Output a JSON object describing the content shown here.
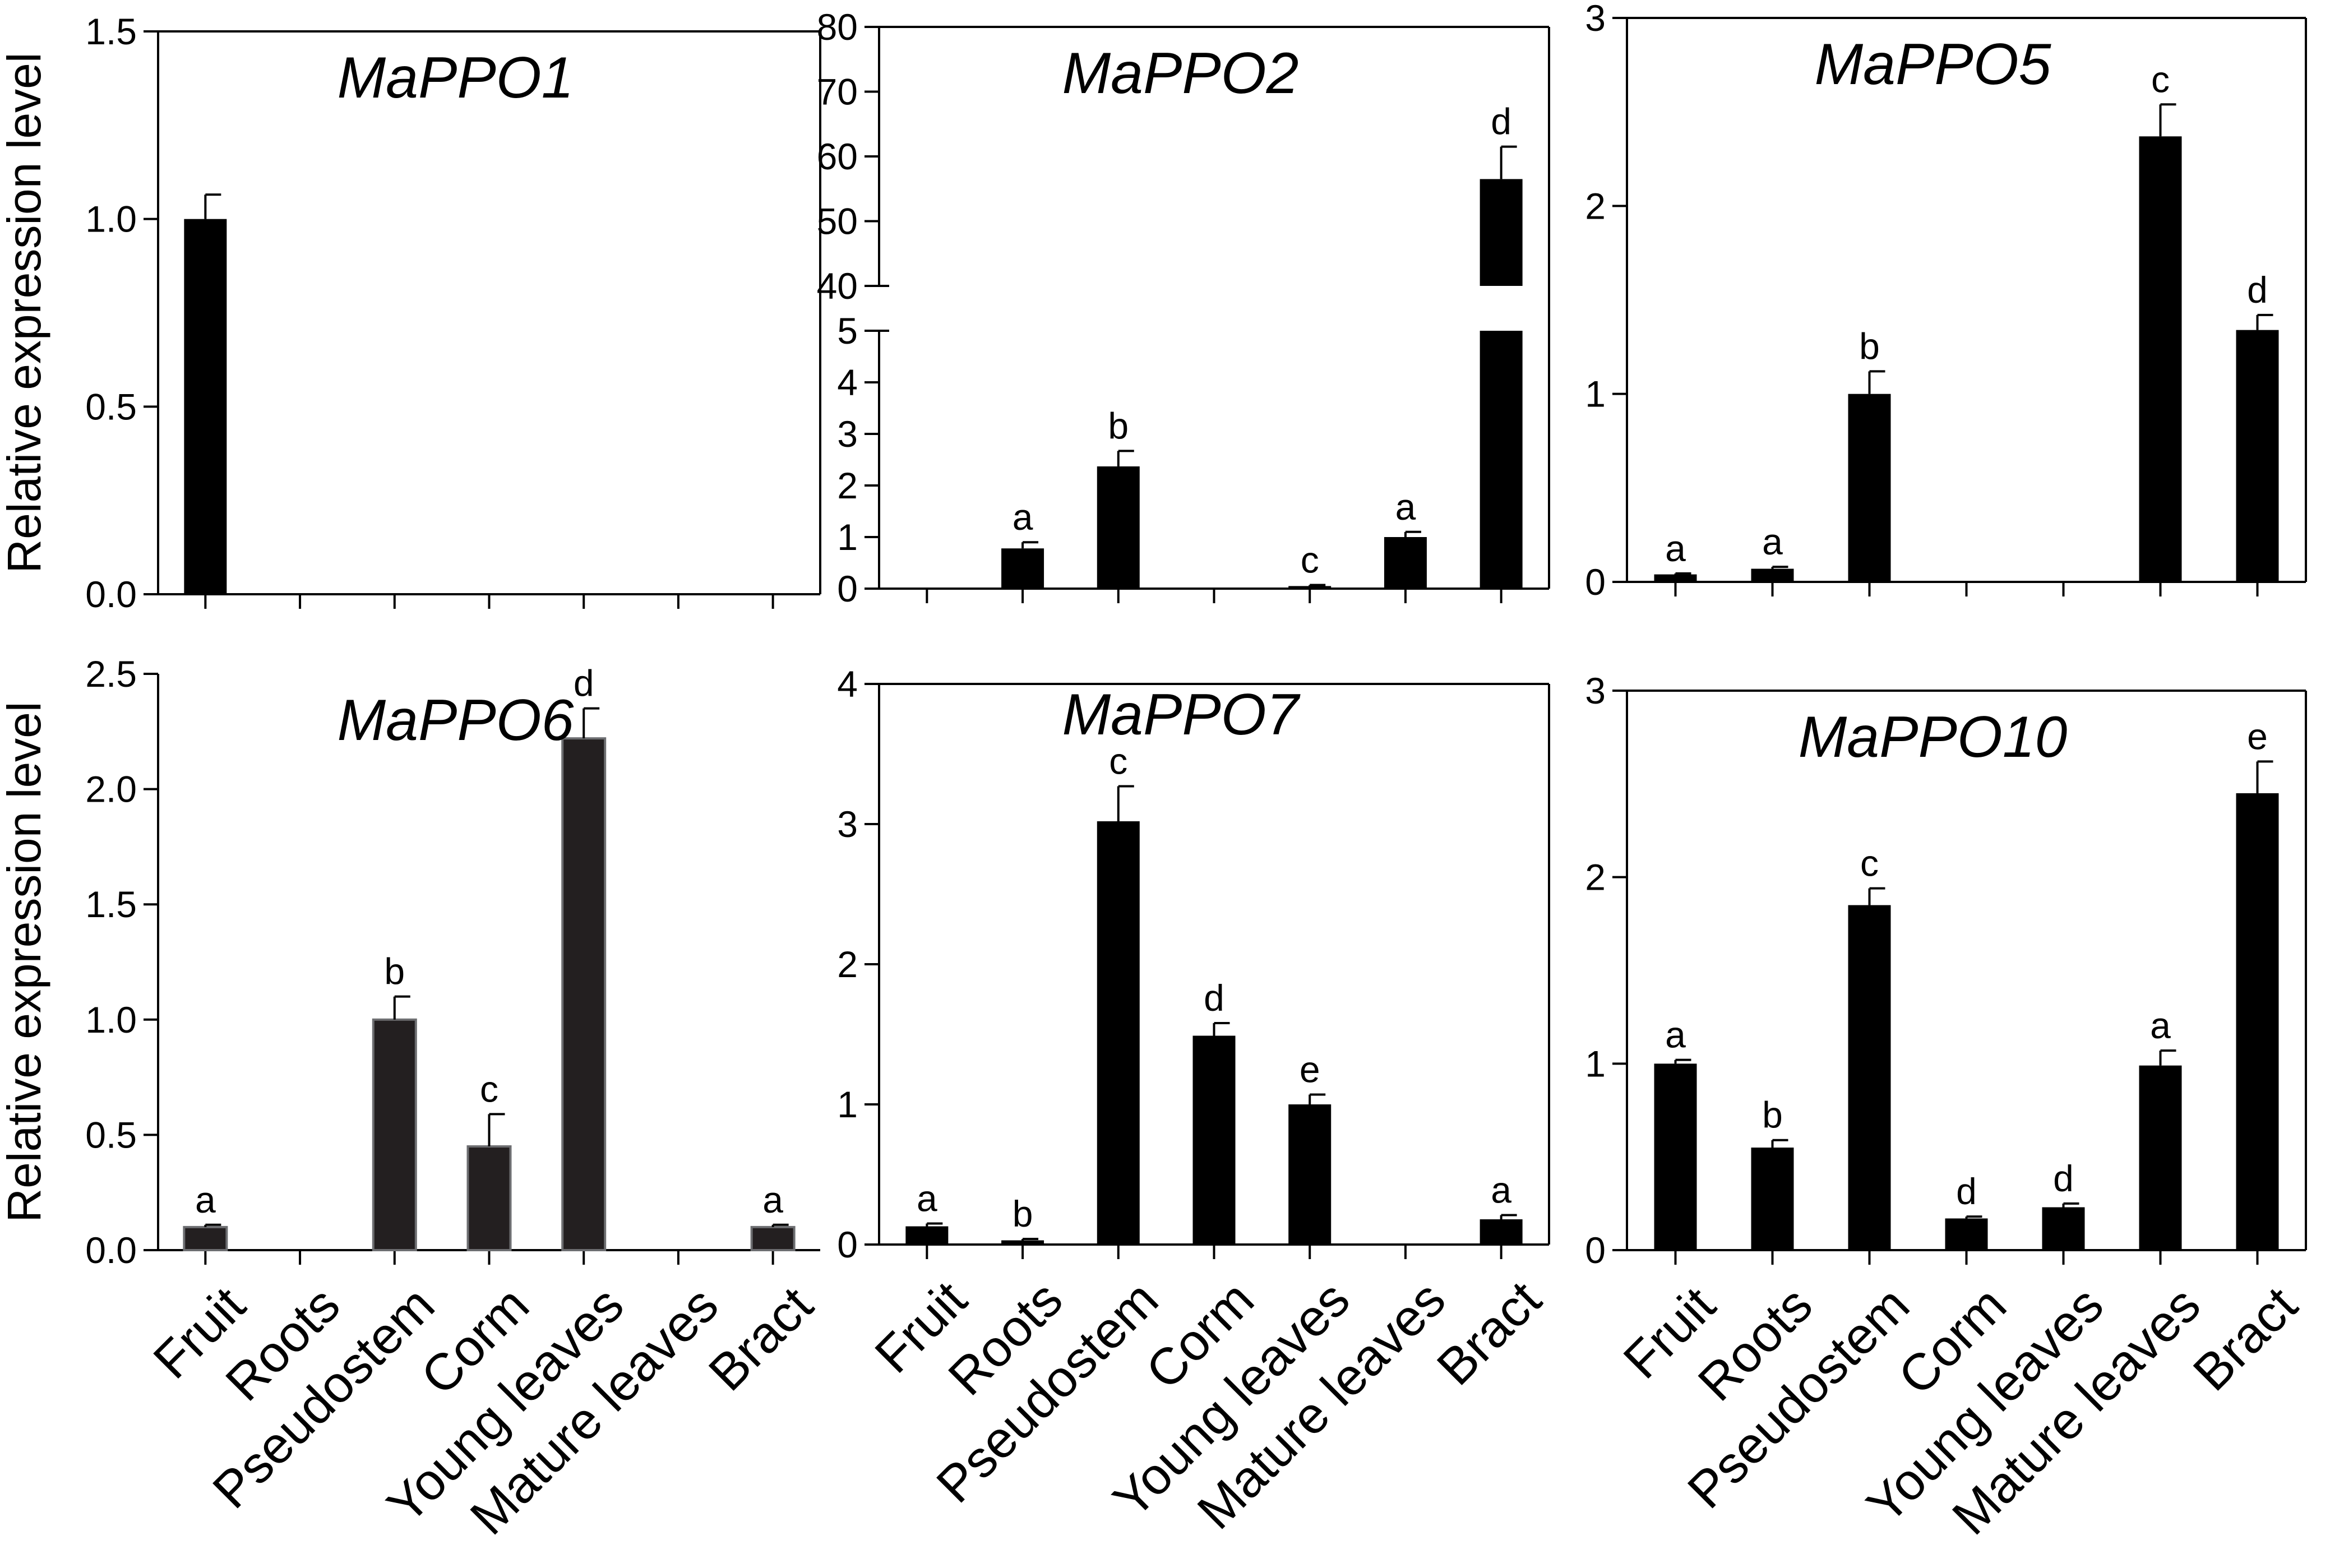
{
  "figure": {
    "ylabel": "Relative expression level",
    "categories": [
      "Fruit",
      "Roots",
      "Pseudostem",
      "Corm",
      "Young leaves",
      "Mature leaves",
      "Bract"
    ]
  },
  "colors": {
    "bar": "#000000",
    "bar_dark": "#231f20",
    "axis": "#000000"
  },
  "chart_data": [
    {
      "id": "mappo1",
      "type": "bar",
      "title": "MaPPO1",
      "categories": [
        "Fruit",
        "Roots",
        "Pseudostem",
        "Corm",
        "Young leaves",
        "Mature leaves",
        "Bract"
      ],
      "values": [
        1.0,
        0,
        0,
        0,
        0,
        0,
        0
      ],
      "errors": [
        0.065,
        0,
        0,
        0,
        0,
        0,
        0
      ],
      "labels": [
        "",
        "",
        "",
        "",
        "",
        "",
        ""
      ],
      "ylim": [
        0,
        1.5
      ],
      "yticks": [
        0,
        0.5,
        1.0,
        1.5
      ],
      "ytick_labels": [
        "0.0",
        "0.5",
        "1.0",
        "1.5"
      ],
      "ylabel": "Relative expression level",
      "xlabel": "",
      "show_category_labels": false,
      "box": "full",
      "bar_color": "#000000"
    },
    {
      "id": "mappo2",
      "type": "bar",
      "title": "MaPPO2",
      "axis_break": true,
      "categories": [
        "Fruit",
        "Roots",
        "Pseudostem",
        "Corm",
        "Young leaves",
        "Mature leaves",
        "Bract"
      ],
      "values": [
        0,
        0.78,
        2.37,
        0,
        0.05,
        1.0,
        56.5
      ],
      "errors": [
        0,
        0.12,
        0.3,
        0,
        0.02,
        0.1,
        5.0
      ],
      "labels": [
        "",
        "a",
        "b",
        "",
        "c",
        "a",
        "d"
      ],
      "ylim_lower": [
        0,
        5
      ],
      "ylim_upper": [
        40,
        80
      ],
      "yticks_lower": [
        0,
        1,
        2,
        3,
        4,
        5
      ],
      "ytick_labels_lower": [
        "0",
        "1",
        "2",
        "3",
        "4",
        "5"
      ],
      "yticks_upper": [
        40,
        50,
        60,
        70,
        80
      ],
      "ytick_labels_upper": [
        "40",
        "50",
        "60",
        "70",
        "80"
      ],
      "ylabel": "",
      "xlabel": "",
      "show_category_labels": false,
      "box": "full",
      "bar_color": "#000000"
    },
    {
      "id": "mappo5",
      "type": "bar",
      "title": "MaPPO5",
      "categories": [
        "Fruit",
        "Roots",
        "Pseudostem",
        "Corm",
        "Young leaves",
        "Mature leaves",
        "Bract"
      ],
      "values": [
        0.04,
        0.07,
        1.0,
        0.005,
        0,
        2.37,
        1.34
      ],
      "errors": [
        0.005,
        0.01,
        0.12,
        0,
        0,
        0.17,
        0.08
      ],
      "labels": [
        "a",
        "a",
        "b",
        "",
        "",
        "c",
        "d"
      ],
      "ylim": [
        0,
        3
      ],
      "yticks": [
        0,
        1,
        2,
        3
      ],
      "ytick_labels": [
        "0",
        "1",
        "2",
        "3"
      ],
      "ylabel": "",
      "xlabel": "",
      "show_category_labels": false,
      "box": "full",
      "bar_color": "#000000"
    },
    {
      "id": "mappo6",
      "type": "bar",
      "title": "MaPPO6",
      "categories": [
        "Fruit",
        "Roots",
        "Pseudostem",
        "Corm",
        "Young leaves",
        "Mature leaves",
        "Bract"
      ],
      "values": [
        0.1,
        0,
        1.0,
        0.45,
        2.22,
        0,
        0.1
      ],
      "errors": [
        0.01,
        0,
        0.1,
        0.14,
        0.13,
        0,
        0.01
      ],
      "labels": [
        "a",
        "",
        "b",
        "c",
        "d",
        "",
        "a"
      ],
      "ylim": [
        0,
        2.5
      ],
      "yticks": [
        0,
        0.5,
        1.0,
        1.5,
        2.0,
        2.5
      ],
      "ytick_labels": [
        "0.0",
        "0.5",
        "1.0",
        "1.5",
        "2.0",
        "2.5"
      ],
      "ylabel": "Relative expression level",
      "xlabel": "",
      "show_category_labels": true,
      "box": "open",
      "bar_color": "#231f20"
    },
    {
      "id": "mappo7",
      "type": "bar",
      "title": "MaPPO7",
      "categories": [
        "Fruit",
        "Roots",
        "Pseudostem",
        "Corm",
        "Young leaves",
        "Mature leaves",
        "Bract"
      ],
      "values": [
        0.13,
        0.03,
        3.02,
        1.49,
        1.0,
        0,
        0.18
      ],
      "errors": [
        0.02,
        0.01,
        0.25,
        0.09,
        0.07,
        0,
        0.03
      ],
      "labels": [
        "a",
        "b",
        "c",
        "d",
        "e",
        "",
        "a"
      ],
      "ylim": [
        0,
        4
      ],
      "yticks": [
        0,
        1,
        2,
        3,
        4
      ],
      "ytick_labels": [
        "0",
        "1",
        "2",
        "3",
        "4"
      ],
      "ylabel": "",
      "xlabel": "",
      "show_category_labels": true,
      "box": "full",
      "bar_color": "#000000"
    },
    {
      "id": "mappo10",
      "type": "bar",
      "title": "MaPPO10",
      "categories": [
        "Fruit",
        "Roots",
        "Pseudostem",
        "Corm",
        "Young leaves",
        "Mature leaves",
        "Bract"
      ],
      "values": [
        1.0,
        0.55,
        1.85,
        0.17,
        0.23,
        0.99,
        2.45
      ],
      "errors": [
        0.02,
        0.04,
        0.09,
        0.01,
        0.02,
        0.08,
        0.17
      ],
      "labels": [
        "a",
        "b",
        "c",
        "d",
        "d",
        "a",
        "e"
      ],
      "ylim": [
        0,
        3
      ],
      "yticks": [
        0,
        1,
        2,
        3
      ],
      "ytick_labels": [
        "0",
        "1",
        "2",
        "3"
      ],
      "ylabel": "",
      "xlabel": "",
      "show_category_labels": true,
      "box": "full",
      "bar_color": "#000000"
    }
  ]
}
